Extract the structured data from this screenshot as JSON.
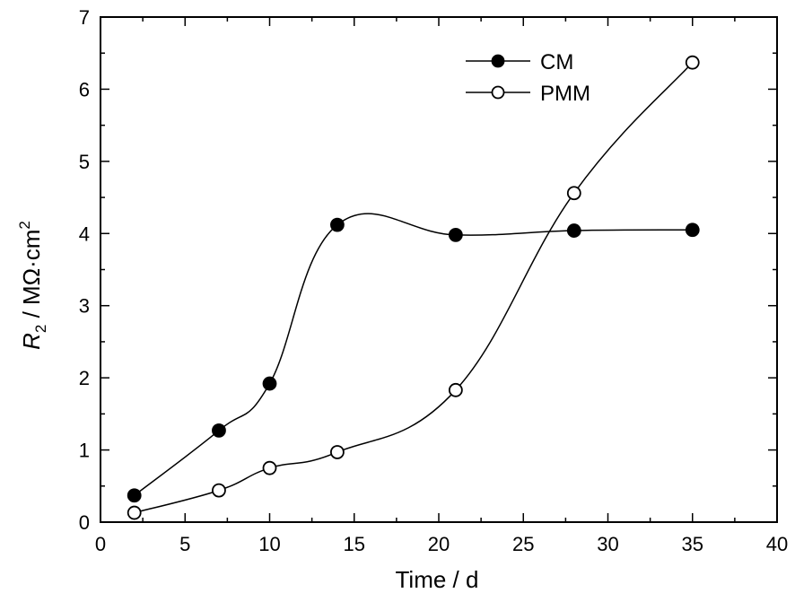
{
  "chart_data": {
    "type": "line",
    "title": "",
    "xlabel": "Time / d",
    "ylabel": {
      "symbol": "R",
      "subscript": "2",
      "unit": " / MΩ·cm",
      "superscript": "2"
    },
    "xlim": [
      0,
      40
    ],
    "ylim": [
      0,
      7
    ],
    "xticks": [
      0,
      5,
      10,
      15,
      20,
      25,
      30,
      35,
      40
    ],
    "yticks": [
      0,
      1,
      2,
      3,
      4,
      5,
      6,
      7
    ],
    "grid": false,
    "legend_position": "top-right",
    "series": [
      {
        "name": "CM",
        "marker": "filled-circle",
        "x": [
          2,
          7,
          10,
          14,
          21,
          28,
          35
        ],
        "y": [
          0.37,
          1.27,
          1.92,
          4.12,
          3.98,
          4.04,
          4.05
        ]
      },
      {
        "name": "PMM",
        "marker": "open-circle",
        "x": [
          2,
          7,
          10,
          14,
          21,
          28,
          35
        ],
        "y": [
          0.13,
          0.44,
          0.75,
          0.97,
          1.83,
          4.56,
          6.37
        ]
      }
    ]
  }
}
